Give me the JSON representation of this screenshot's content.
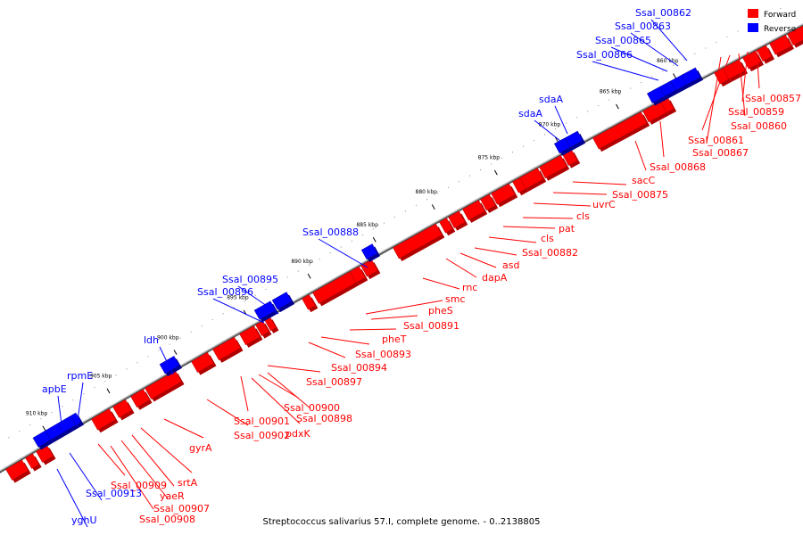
{
  "caption": "Streptococcus salivarius 57.I, complete genome. - 0..2138805",
  "legend": [
    {
      "label": "Forward",
      "color": "#ff0000"
    },
    {
      "label": "Reverse",
      "color": "#0000ff"
    }
  ],
  "colors": {
    "forward": "#ff0000",
    "reverse": "#0000ff",
    "backbone": "#808080"
  },
  "ticks": [
    "860 kbp",
    "865 kbp",
    "870 kbp",
    "875 kbp",
    "880 kbp",
    "885 kbp",
    "890 kbp",
    "895 kbp",
    "900 kbp",
    "905 kbp",
    "910 kbp"
  ],
  "forward_labels": [
    "Ssal_00857",
    "Ssal_00859",
    "Ssal_00860",
    "Ssal_00861",
    "Ssal_00867",
    "Ssal_00868",
    "sacC",
    "Ssal_00875",
    "uvrC",
    "cls",
    "pat",
    "cls",
    "Ssal_00882",
    "asd",
    "dapA",
    "rnc",
    "smc",
    "pheS",
    "Ssal_00891",
    "pheT",
    "Ssal_00893",
    "Ssal_00894",
    "Ssal_00897",
    "Ssal_00900",
    "Ssal_00898",
    "pdxK",
    "Ssal_00901",
    "Ssal_00902",
    "gyrA",
    "srtA",
    "Ssal_00909",
    "yaeR",
    "Ssal_00907",
    "Ssal_00908"
  ],
  "reverse_labels": [
    "Ssal_00862",
    "Ssal_00863",
    "Ssal_00865",
    "Ssal_00866",
    "sdaA",
    "sdaA",
    "Ssal_00888",
    "Ssal_00895",
    "Ssal_00896",
    "ldh",
    "rpmE",
    "apbE",
    "Ssal_00913",
    "yghU"
  ]
}
